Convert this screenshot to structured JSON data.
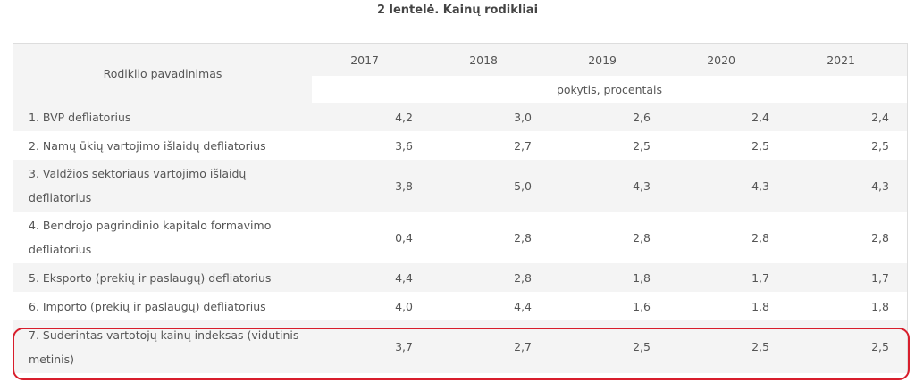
{
  "title": "2 lentelė. Kainų rodikliai",
  "table": {
    "name_header": "Rodiklio pavadinimas",
    "years": [
      "2017",
      "2018",
      "2019",
      "2020",
      "2021"
    ],
    "unit_header": "pokytis, procentais",
    "rows": [
      {
        "name": "1. BVP defliatorius",
        "values": [
          "4,2",
          "3,0",
          "2,6",
          "2,4",
          "2,4"
        ]
      },
      {
        "name": "2. Namų ūkių vartojimo išlaidų defliatorius",
        "values": [
          "3,6",
          "2,7",
          "2,5",
          "2,5",
          "2,5"
        ]
      },
      {
        "name": "3. Valdžios sektoriaus vartojimo išlaidų defliatorius",
        "values": [
          "3,8",
          "5,0",
          "4,3",
          "4,3",
          "4,3"
        ]
      },
      {
        "name": "4. Bendrojo pagrindinio kapitalo formavimo defliatorius",
        "values": [
          "0,4",
          "2,8",
          "2,8",
          "2,8",
          "2,8"
        ]
      },
      {
        "name": "5. Eksporto (prekių ir paslaugų) defliatorius",
        "values": [
          "4,4",
          "2,8",
          "1,8",
          "1,7",
          "1,7"
        ]
      },
      {
        "name": "6. Importo (prekių ir paslaugų) defliatorius",
        "values": [
          "4,0",
          "4,4",
          "1,6",
          "1,8",
          "1,8"
        ]
      },
      {
        "name": "7. Suderintas vartotojų kainų indeksas (vidutinis metinis)",
        "values": [
          "3,7",
          "2,7",
          "2,5",
          "2,5",
          "2,5"
        ]
      }
    ]
  },
  "highlight": {
    "row_index": 6,
    "color": "#d81e2c"
  },
  "colors": {
    "stripe": "#f4f4f4",
    "border": "#dddddd",
    "text": "#555555"
  }
}
